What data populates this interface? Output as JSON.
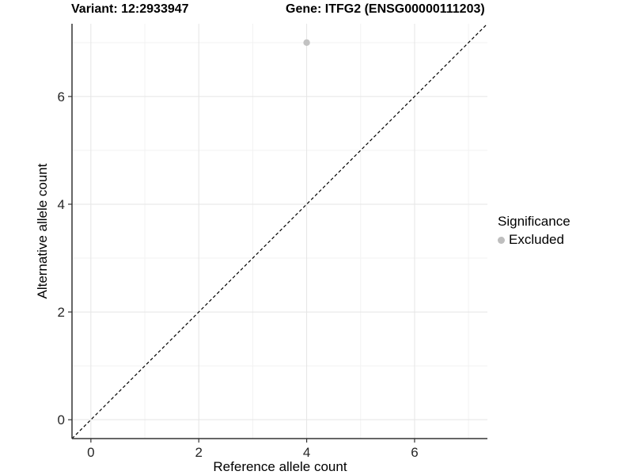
{
  "titles": {
    "variant": "Variant: 12:2933947",
    "gene": "Gene: ITFG2 (ENSG00000111203)"
  },
  "chart_data": {
    "type": "scatter",
    "xlabel": "Reference allele count",
    "ylabel": "Alternative allele count",
    "xlim": [
      -0.35,
      7.35
    ],
    "ylim": [
      -0.35,
      7.35
    ],
    "x_major_ticks": [
      0,
      2,
      4,
      6
    ],
    "y_major_ticks": [
      0,
      2,
      4,
      6
    ],
    "x_minor_ticks": [
      1,
      3,
      5,
      7
    ],
    "y_minor_ticks": [
      1,
      3,
      5,
      7
    ],
    "grid": true,
    "reference_line": {
      "type": "identity",
      "style": "dashed",
      "color": "#000000"
    },
    "series": [
      {
        "name": "Excluded",
        "color": "#bebebe",
        "points": [
          {
            "x": 4,
            "y": 7
          }
        ]
      }
    ],
    "legend": {
      "title": "Significance",
      "position": "right",
      "entries": [
        {
          "label": "Excluded",
          "color": "#bebebe"
        }
      ]
    },
    "colors": {
      "background": "#ffffff",
      "grid_major": "#e5e5e5",
      "grid_minor": "#f2f2f2",
      "axis_line": "#333333",
      "tick": "#333333",
      "tick_label": "#262626",
      "point": "#c2c2c2"
    }
  },
  "legend": {
    "title": "Significance",
    "entry_label": "Excluded"
  }
}
